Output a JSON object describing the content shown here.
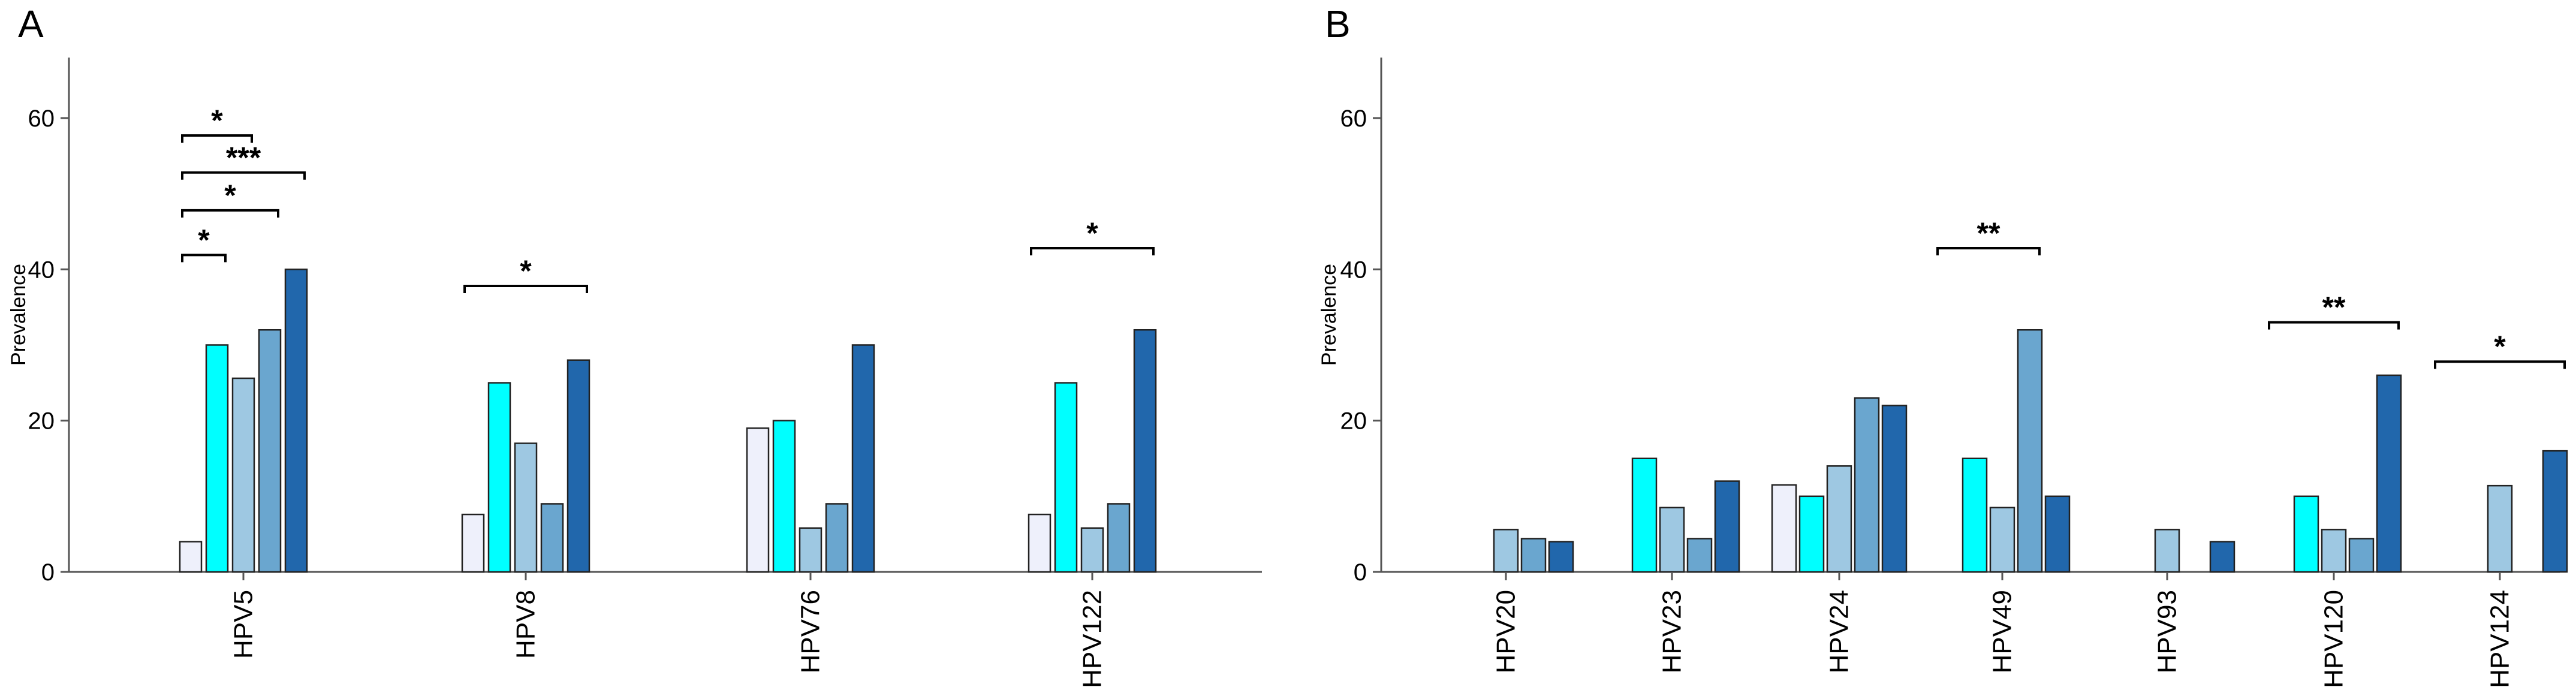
{
  "series_colors": [
    "#eef0fb",
    "#00ffff",
    "#9ec8e2",
    "#6aa6cf",
    "#2167ac"
  ],
  "chart_data": [
    {
      "panel": "A",
      "type": "bar",
      "ylabel": "Prevalence",
      "ylim": [
        0,
        68
      ],
      "yticks": [
        0,
        20,
        40,
        60
      ],
      "categories": [
        "HPV5",
        "HPV8",
        "HPV76",
        "HPV122"
      ],
      "values": [
        [
          4,
          30,
          25.6,
          32,
          40
        ],
        [
          7.6,
          25,
          17,
          9,
          28
        ],
        [
          19,
          20,
          5.8,
          9,
          30
        ],
        [
          7.6,
          25,
          5.8,
          9,
          32
        ]
      ],
      "significance": [
        {
          "category": 0,
          "from": 0,
          "to": 2,
          "y": 57.7,
          "label": "*"
        },
        {
          "category": 0,
          "from": 0,
          "to": 4,
          "y": 52.8,
          "label": "***"
        },
        {
          "category": 0,
          "from": 0,
          "to": 3,
          "y": 47.8,
          "label": "*"
        },
        {
          "category": 0,
          "from": 0,
          "to": 1,
          "y": 41.9,
          "label": "*"
        },
        {
          "category": 1,
          "from": 0,
          "to": 4,
          "y": 37.8,
          "label": "*"
        },
        {
          "category": 3,
          "from": 0,
          "to": 4,
          "y": 42.8,
          "label": "*"
        }
      ]
    },
    {
      "panel": "B",
      "type": "bar",
      "ylabel": "Prevalence",
      "ylim": [
        0,
        68
      ],
      "yticks": [
        0,
        20,
        40,
        60
      ],
      "categories": [
        "HPV20",
        "HPV23",
        "HPV24",
        "HPV49",
        "HPV93",
        "HPV120",
        "HPV124"
      ],
      "values": [
        [
          0,
          0,
          5.6,
          4.4,
          4
        ],
        [
          0,
          15,
          8.5,
          4.4,
          12
        ],
        [
          11.5,
          10,
          14,
          23,
          22
        ],
        [
          0,
          15,
          8.5,
          32,
          10
        ],
        [
          0,
          0,
          5.6,
          0,
          4
        ],
        [
          0,
          10,
          5.6,
          4.4,
          26
        ],
        [
          0,
          0,
          11.4,
          0,
          16
        ]
      ],
      "significance": [
        {
          "category": 3,
          "from": 0,
          "to": 3,
          "y": 42.8,
          "label": "**"
        },
        {
          "category": 5,
          "from": 0,
          "to": 4,
          "y": 33,
          "label": "**"
        },
        {
          "category": 6,
          "from": 0,
          "to": 4,
          "y": 27.8,
          "label": "*"
        }
      ]
    }
  ]
}
